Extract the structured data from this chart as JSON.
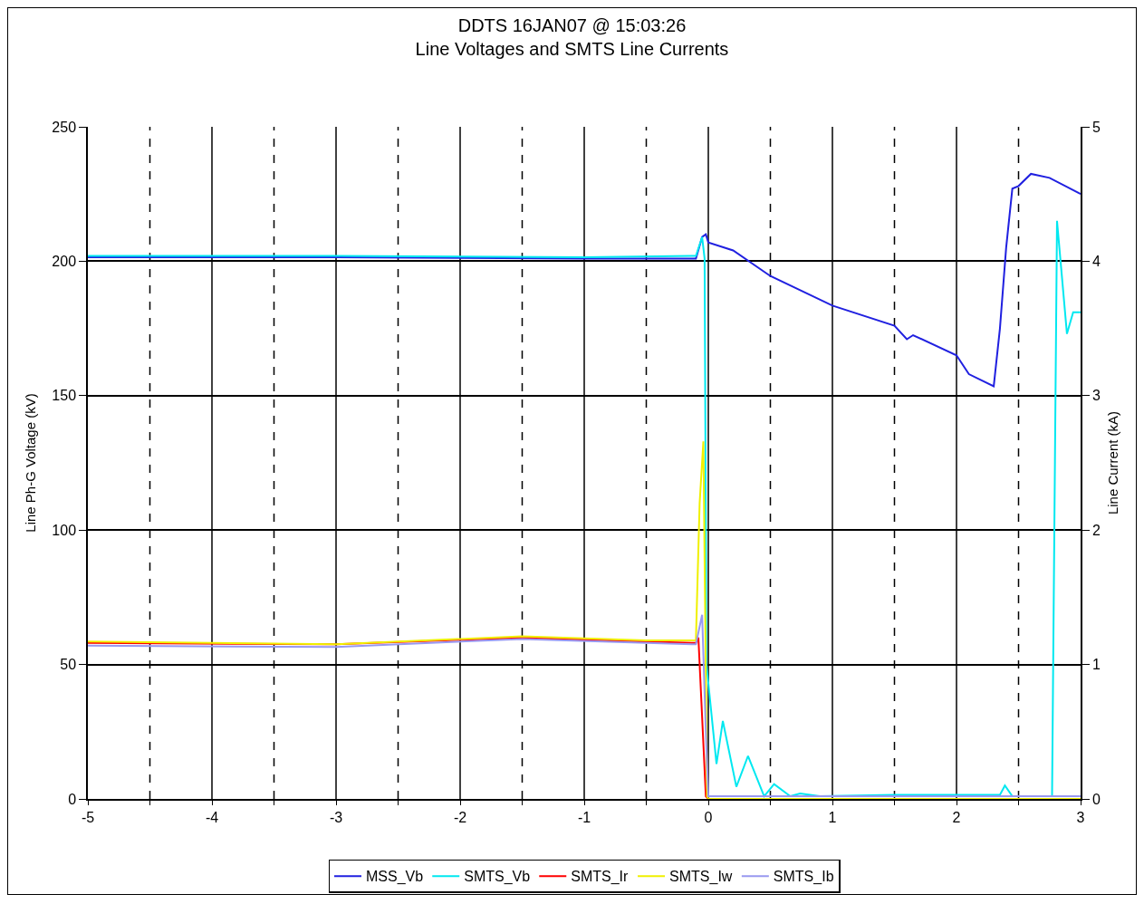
{
  "chart_data": {
    "type": "line",
    "title": "DDTS 16JAN07 @ 15:03:26",
    "subtitle": "Line Voltages and SMTS Line Currents",
    "ylabel": "Line Ph-G Voltage (kV)",
    "y2label": "Line Current (kA)",
    "xlim": [
      -5,
      3
    ],
    "xticks": [
      -5,
      {
        "value": -4.5,
        "label": null
      },
      -4,
      {
        "value": -3.5,
        "label": null
      },
      -3,
      {
        "value": -2.5,
        "label": null
      },
      -2,
      {
        "value": -1.5,
        "label": null
      },
      -1,
      {
        "value": -0.5,
        "label": null
      },
      0,
      {
        "value": 0.5,
        "label": null
      },
      1,
      {
        "value": 1.5,
        "label": null
      },
      2,
      {
        "value": 2.5,
        "label": null
      },
      3
    ],
    "ylim": [
      0,
      250
    ],
    "yticks": [
      0,
      50,
      100,
      150,
      200,
      250
    ],
    "y2lim": [
      0,
      5
    ],
    "y2ticks": [
      0,
      1,
      2,
      3,
      4,
      5
    ],
    "grid": true,
    "legend": "bottom",
    "marker": "none",
    "line_style": "solid",
    "series": [
      {
        "name": "MSS_Vb",
        "color": "#2020e0",
        "x": [
          -5,
          -3,
          -1,
          -0.1,
          -0.05,
          -0.02,
          0,
          0.2,
          0.5,
          1,
          1.5,
          1.6,
          1.65,
          2,
          2.1,
          2.3,
          2.35,
          2.4,
          2.45,
          2.5,
          2.6,
          2.75,
          3
        ],
        "values": [
          201.5,
          201.5,
          201,
          201,
          209,
          210,
          207,
          204,
          194.5,
          183.5,
          176,
          171,
          172.5,
          165,
          158,
          153.5,
          175,
          205,
          227,
          228,
          232.5,
          231,
          225
        ]
      },
      {
        "name": "SMTS_Vb",
        "color": "#00e8f0",
        "x": [
          -5,
          -3,
          -1,
          -0.1,
          -0.05,
          -0.03,
          -0.015,
          0.066,
          0.117,
          0.226,
          0.32,
          0.45,
          0.53,
          0.66,
          0.74,
          0.9,
          1.5,
          2.35,
          2.39,
          2.45,
          2.77,
          2.81,
          2.89,
          2.94,
          3
        ],
        "values": [
          202,
          202,
          201.5,
          202,
          209,
          201,
          50,
          13,
          29,
          4.5,
          16,
          1,
          5.5,
          1,
          2,
          1,
          1.5,
          1.5,
          5,
          1,
          1,
          215,
          173,
          181,
          181
        ]
      },
      {
        "name": "SMTS_Ir",
        "color": "#ff0000",
        "axis": "y2",
        "x": [
          -5,
          -3,
          -1.5,
          -0.5,
          -0.1,
          -0.08,
          -0.02,
          0,
          3
        ],
        "values": [
          1.16,
          1.15,
          1.2,
          1.17,
          1.16,
          1.2,
          0.02,
          0,
          0
        ]
      },
      {
        "name": "SMTS_Iw",
        "color": "#f0f000",
        "axis": "y2",
        "x": [
          -5,
          -3,
          -1.5,
          -0.5,
          -0.1,
          -0.07,
          -0.04,
          -0.01,
          0,
          3
        ],
        "values": [
          1.17,
          1.15,
          1.21,
          1.18,
          1.18,
          2.2,
          2.66,
          0.02,
          0,
          0
        ]
      },
      {
        "name": "SMTS_Ib",
        "color": "#9898f0",
        "axis": "y2",
        "x": [
          -5,
          -3,
          -1.5,
          -0.5,
          -0.1,
          -0.05,
          -0.02,
          0,
          3
        ],
        "values": [
          1.14,
          1.13,
          1.19,
          1.16,
          1.15,
          1.37,
          0.5,
          0.02,
          0.02
        ]
      }
    ]
  }
}
